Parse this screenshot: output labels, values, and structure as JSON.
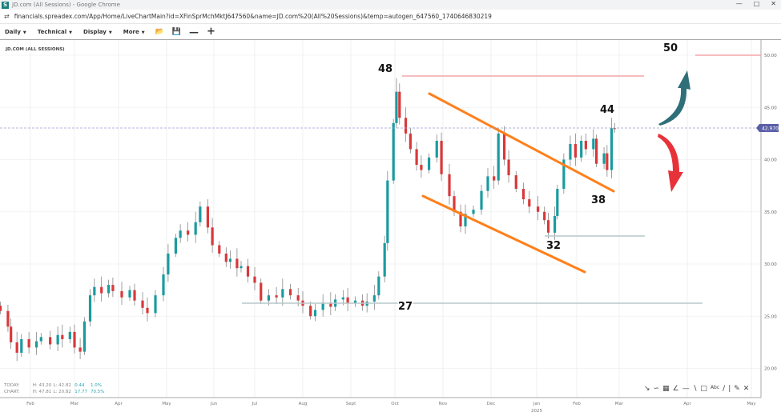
{
  "window": {
    "title": "JD.com (All Sessions) - Google Chrome",
    "logo": "S"
  },
  "browser": {
    "url": "financials.spreadex.com/App/Home/LiveChartMain?id=XFinSprMchMktJ647560&name=JD.com%20(All%20Sessions)&temp=autogen_647560_1740646830219"
  },
  "toolbar": {
    "menus": [
      "Daily",
      "Technical",
      "Display",
      "More"
    ],
    "icons": [
      "open-folder-icon",
      "save-icon",
      "zoom-out-icon",
      "zoom-in-icon"
    ]
  },
  "chart_title": "JD.COM (ALL SESSIONS)",
  "stats": {
    "today": {
      "label": "TODAY:",
      "high": "H: 43.20",
      "low": "L: 42.82",
      "change": "0.44",
      "pct": "1.0%"
    },
    "chart": {
      "label": "CHART:",
      "high": "H: 47.81",
      "low": "L: 20.82",
      "change": "17.77",
      "pct": "70.5%"
    }
  },
  "annotations": {
    "peak": "48",
    "top": "44",
    "support": "38",
    "low": "32",
    "base": "27",
    "target": "50"
  },
  "colors": {
    "up": "#1a9ba0",
    "down": "#d9383a",
    "channel": "#ff7f1a",
    "resistance": "#f4a6aa",
    "support": "#b9c8cc",
    "price_tag": "#5b5ea6",
    "arrow_up": "#2f6f78",
    "arrow_down": "#e8323a"
  },
  "chart_data": {
    "type": "candlestick",
    "title": "JD.COM (ALL SESSIONS)",
    "ylim": [
      19,
      52
    ],
    "yticks": [
      "20.00",
      "25.00",
      "30.00",
      "35.00",
      "40.00",
      "45.00",
      "50.00"
    ],
    "xticks": [
      "Feb",
      "Mar",
      "Apr",
      "May",
      "Jun",
      "Jul",
      "Aug",
      "Sept",
      "Oct",
      "Nov",
      "Dec",
      "Jan",
      "Feb",
      "Mar",
      "Apr",
      "May"
    ],
    "xtick_year": "2025",
    "last_price": "42.970",
    "grid": true,
    "closes": [
      [
        "2024-01-12",
        25.5
      ],
      [
        "2024-01-17",
        24.0
      ],
      [
        "2024-01-19",
        22.5
      ],
      [
        "2024-01-23",
        21.5
      ],
      [
        "2024-01-26",
        22.8
      ],
      [
        "2024-01-31",
        22.0
      ],
      [
        "2024-02-05",
        22.6
      ],
      [
        "2024-02-08",
        23.0
      ],
      [
        "2024-02-14",
        22.3
      ],
      [
        "2024-02-19",
        23.2
      ],
      [
        "2024-02-22",
        22.8
      ],
      [
        "2024-02-27",
        23.5
      ],
      [
        "2024-03-01",
        22.0
      ],
      [
        "2024-03-05",
        21.6
      ],
      [
        "2024-03-08",
        24.5
      ],
      [
        "2024-03-12",
        27.0
      ],
      [
        "2024-03-15",
        27.8
      ],
      [
        "2024-03-20",
        27.2
      ],
      [
        "2024-03-25",
        28.0
      ],
      [
        "2024-03-28",
        27.4
      ],
      [
        "2024-04-03",
        26.8
      ],
      [
        "2024-04-08",
        27.5
      ],
      [
        "2024-04-11",
        26.5
      ],
      [
        "2024-04-16",
        25.8
      ],
      [
        "2024-04-19",
        25.3
      ],
      [
        "2024-04-24",
        27.0
      ],
      [
        "2024-04-29",
        29.0
      ],
      [
        "2024-05-02",
        31.0
      ],
      [
        "2024-05-07",
        32.5
      ],
      [
        "2024-05-10",
        33.2
      ],
      [
        "2024-05-15",
        32.8
      ],
      [
        "2024-05-20",
        34.0
      ],
      [
        "2024-05-23",
        35.5
      ],
      [
        "2024-05-28",
        33.5
      ],
      [
        "2024-05-31",
        31.8
      ],
      [
        "2024-06-05",
        31.0
      ],
      [
        "2024-06-10",
        30.2
      ],
      [
        "2024-06-13",
        30.5
      ],
      [
        "2024-06-18",
        29.6
      ],
      [
        "2024-06-21",
        29.8
      ],
      [
        "2024-06-26",
        28.8
      ],
      [
        "2024-07-01",
        28.2
      ],
      [
        "2024-07-05",
        26.5
      ],
      [
        "2024-07-10",
        27.0
      ],
      [
        "2024-07-15",
        26.8
      ],
      [
        "2024-07-19",
        27.6
      ],
      [
        "2024-07-24",
        27.0
      ],
      [
        "2024-07-29",
        26.5
      ],
      [
        "2024-08-01",
        26.0
      ],
      [
        "2024-08-06",
        25.0
      ],
      [
        "2024-08-09",
        25.6
      ],
      [
        "2024-08-14",
        26.3
      ],
      [
        "2024-08-19",
        25.9
      ],
      [
        "2024-08-22",
        26.6
      ],
      [
        "2024-08-27",
        26.8
      ],
      [
        "2024-08-30",
        26.2
      ],
      [
        "2024-09-04",
        26.5
      ],
      [
        "2024-09-09",
        26.0
      ],
      [
        "2024-09-12",
        26.4
      ],
      [
        "2024-09-17",
        27.0
      ],
      [
        "2024-09-20",
        28.8
      ],
      [
        "2024-09-24",
        32.0
      ],
      [
        "2024-09-26",
        38.0
      ],
      [
        "2024-09-30",
        43.5
      ],
      [
        "2024-10-02",
        46.5
      ],
      [
        "2024-10-04",
        44.0
      ],
      [
        "2024-10-08",
        42.5
      ],
      [
        "2024-10-11",
        41.0
      ],
      [
        "2024-10-15",
        39.5
      ],
      [
        "2024-10-18",
        39.0
      ],
      [
        "2024-10-23",
        40.2
      ],
      [
        "2024-10-28",
        41.8
      ],
      [
        "2024-10-31",
        38.6
      ],
      [
        "2024-11-05",
        36.5
      ],
      [
        "2024-11-08",
        35.0
      ],
      [
        "2024-11-12",
        33.6
      ],
      [
        "2024-11-15",
        34.8
      ],
      [
        "2024-11-20",
        35.2
      ],
      [
        "2024-11-25",
        37.0
      ],
      [
        "2024-11-29",
        38.4
      ],
      [
        "2024-12-03",
        38.0
      ],
      [
        "2024-12-06",
        42.5
      ],
      [
        "2024-12-10",
        40.0
      ],
      [
        "2024-12-13",
        38.5
      ],
      [
        "2024-12-18",
        37.2
      ],
      [
        "2024-12-23",
        36.2
      ],
      [
        "2024-12-27",
        35.5
      ],
      [
        "2025-01-02",
        35.0
      ],
      [
        "2025-01-07",
        34.2
      ],
      [
        "2025-01-10",
        33.0
      ],
      [
        "2025-01-15",
        34.6
      ],
      [
        "2025-01-17",
        37.2
      ],
      [
        "2025-01-22",
        40.0
      ],
      [
        "2025-01-27",
        41.5
      ],
      [
        "2025-01-31",
        40.2
      ],
      [
        "2025-02-04",
        41.8
      ],
      [
        "2025-02-07",
        41.0
      ],
      [
        "2025-02-12",
        42.0
      ],
      [
        "2025-02-14",
        39.6
      ],
      [
        "2025-02-19",
        40.6
      ],
      [
        "2025-02-21",
        39.0
      ],
      [
        "2025-02-24",
        43.0
      ],
      [
        "2025-02-26",
        42.97
      ]
    ]
  }
}
